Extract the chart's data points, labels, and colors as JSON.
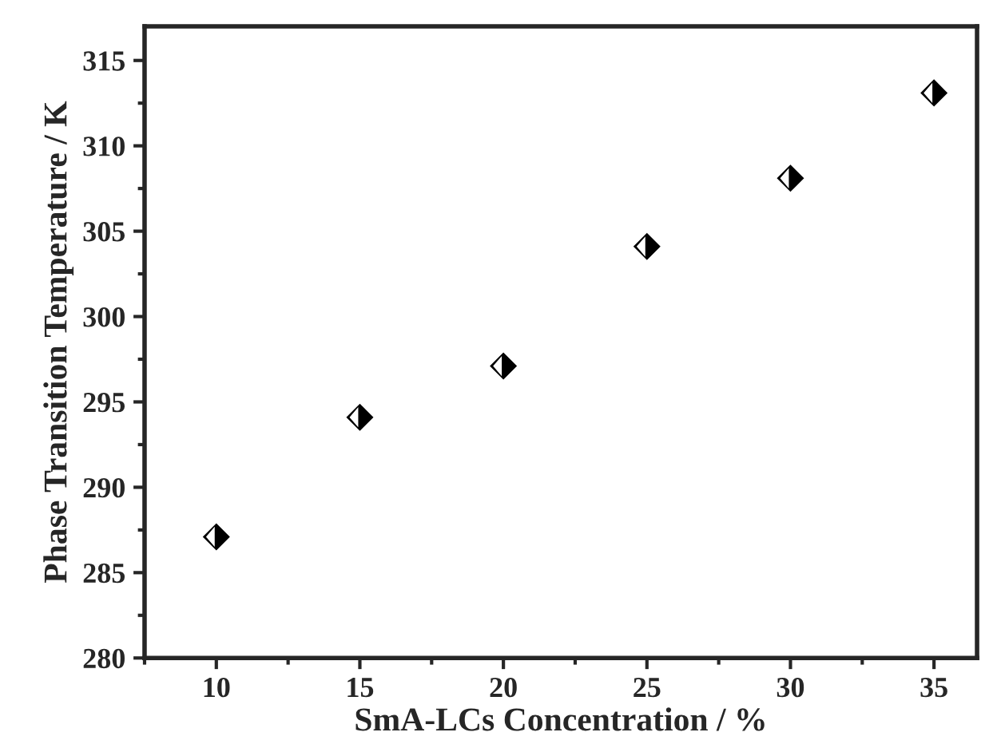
{
  "chart_data": {
    "type": "scatter",
    "xlabel": "SmA-LCs Concentration / %",
    "ylabel": "Phase Transition Temperature / K",
    "x": [
      10,
      15,
      20,
      25,
      30,
      35
    ],
    "series": [
      {
        "color": "#000000",
        "values": [
          287.1,
          294.1,
          297.1,
          304.1,
          308.1,
          313.1
        ]
      }
    ],
    "xlim": [
      7.5,
      36.5
    ],
    "ylim": [
      280,
      317
    ],
    "xticks": [
      10,
      15,
      20,
      25,
      30,
      35
    ],
    "yticks": [
      280,
      285,
      290,
      295,
      300,
      305,
      310,
      315
    ],
    "marker": "diamond",
    "grid": false,
    "legend": false
  }
}
